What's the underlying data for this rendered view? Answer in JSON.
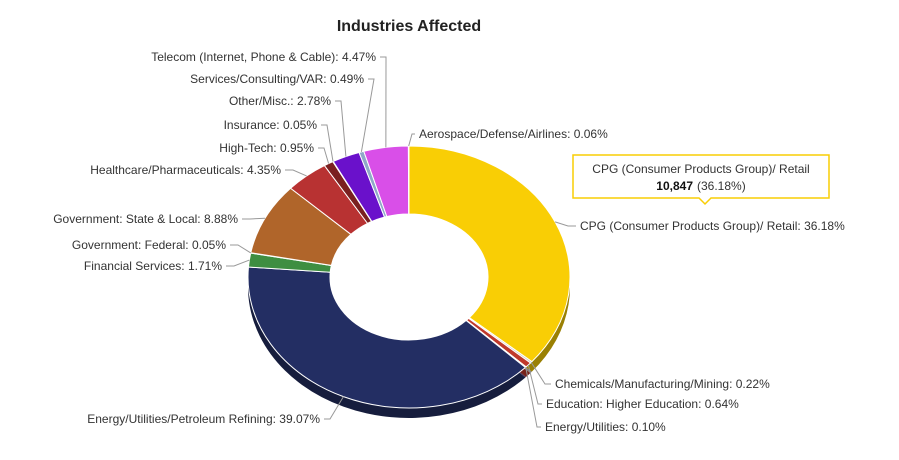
{
  "chart_data": {
    "type": "pie",
    "variant": "donut-3d",
    "title": "Industries Affected",
    "slices": [
      {
        "name": "CPG (Consumer Products Group)/ Retail",
        "label": "CPG (Consumer Products Group)/ Retail: 36.18%",
        "value": 36.18,
        "color": "#F9CE05"
      },
      {
        "name": "Chemicals/Manufacturing/Mining",
        "label": "Chemicals/Manufacturing/Mining: 0.22%",
        "value": 0.22,
        "color": "#D6D0C7"
      },
      {
        "name": "Education: Higher Education",
        "label": "Education: Higher Education: 0.64%",
        "value": 0.64,
        "color": "#C0392B"
      },
      {
        "name": "Energy/Utilities",
        "label": "Energy/Utilities: 0.10%",
        "value": 0.1,
        "color": "#7A4A8A"
      },
      {
        "name": "Energy/Utilities/Petroleum Refining",
        "label": "Energy/Utilities/Petroleum Refining: 39.07%",
        "value": 39.07,
        "color": "#232E63"
      },
      {
        "name": "Financial Services",
        "label": "Financial Services: 1.71%",
        "value": 1.71,
        "color": "#3E8E41"
      },
      {
        "name": "Government: Federal",
        "label": "Government: Federal: 0.05%",
        "value": 0.05,
        "color": "#9AA0A6"
      },
      {
        "name": "Government: State & Local",
        "label": "Government: State & Local: 8.88%",
        "value": 8.88,
        "color": "#B0652A"
      },
      {
        "name": "Healthcare/Pharmaceuticals",
        "label": "Healthcare/Pharmaceuticals: 4.35%",
        "value": 4.35,
        "color": "#B83232"
      },
      {
        "name": "High-Tech",
        "label": "High-Tech: 0.95%",
        "value": 0.95,
        "color": "#7A2020"
      },
      {
        "name": "Insurance",
        "label": "Insurance: 0.05%",
        "value": 0.05,
        "color": "#5B3A7A"
      },
      {
        "name": "Other/Misc.",
        "label": "Other/Misc.: 2.78%",
        "value": 2.78,
        "color": "#6A11CB"
      },
      {
        "name": "Services/Consulting/VAR",
        "label": "Services/Consulting/VAR: 0.49%",
        "value": 0.49,
        "color": "#8FA8C8"
      },
      {
        "name": "Telecom (Internet, Phone & Cable)",
        "label": "Telecom (Internet, Phone & Cable): 4.47%",
        "value": 4.47,
        "color": "#D94FE8"
      },
      {
        "name": "Aerospace/Defense/Airlines",
        "label": "Aerospace/Defense/Airlines: 0.06%",
        "value": 0.06,
        "color": "#F9CE05"
      }
    ],
    "tooltip": {
      "name": "CPG (Consumer Products Group)/ Retail",
      "count": "10,847",
      "percent": "(36.18%)",
      "border_color": "#F9CE05"
    }
  }
}
